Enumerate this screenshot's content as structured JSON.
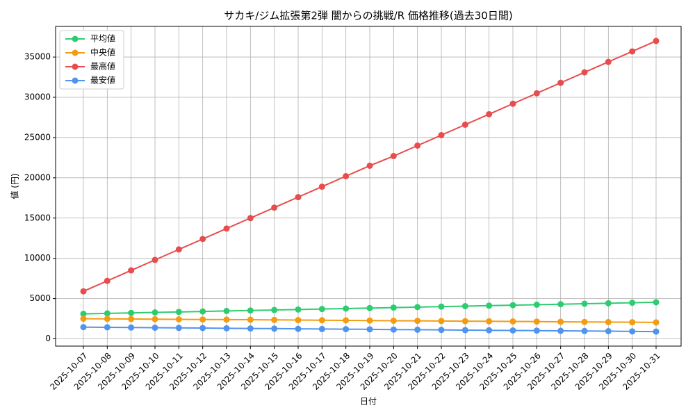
{
  "chart_data": {
    "type": "line",
    "title": "サカキ/ジム拡張第2弾 闇からの挑戦/R 価格推移(過去30日間)",
    "x_label": "日付",
    "y_label": "値 (円)",
    "categories": [
      "2025-10-07",
      "2025-10-08",
      "2025-10-09",
      "2025-10-10",
      "2025-10-11",
      "2025-10-12",
      "2025-10-13",
      "2025-10-14",
      "2025-10-15",
      "2025-10-16",
      "2025-10-17",
      "2025-10-18",
      "2025-10-19",
      "2025-10-20",
      "2025-10-21",
      "2025-10-22",
      "2025-10-23",
      "2025-10-24",
      "2025-10-25",
      "2025-10-26",
      "2025-10-27",
      "2025-10-28",
      "2025-10-29",
      "2025-10-30",
      "2025-10-31"
    ],
    "series": [
      {
        "name": "平均値",
        "color": "#2ecc71",
        "values": [
          3100,
          3160,
          3220,
          3280,
          3340,
          3400,
          3460,
          3520,
          3580,
          3640,
          3700,
          3760,
          3820,
          3880,
          3940,
          4000,
          4060,
          4120,
          4180,
          4240,
          4300,
          4360,
          4420,
          4480,
          4540
        ]
      },
      {
        "name": "中央値",
        "color": "#f39c12",
        "values": [
          2500,
          2480,
          2460,
          2440,
          2420,
          2400,
          2390,
          2370,
          2350,
          2330,
          2310,
          2290,
          2270,
          2250,
          2230,
          2210,
          2190,
          2180,
          2160,
          2140,
          2120,
          2100,
          2080,
          2060,
          2040
        ]
      },
      {
        "name": "最高値",
        "color": "#e84c4c",
        "values": [
          5900,
          7200,
          8500,
          9800,
          11100,
          12400,
          13700,
          15000,
          16300,
          17600,
          18900,
          20200,
          21500,
          22700,
          24000,
          25300,
          26600,
          27900,
          29200,
          30500,
          31800,
          33100,
          34400,
          35700,
          37000
        ]
      },
      {
        "name": "最安値",
        "color": "#4f94ef",
        "values": [
          1450,
          1430,
          1400,
          1380,
          1360,
          1340,
          1310,
          1290,
          1270,
          1240,
          1220,
          1200,
          1180,
          1150,
          1130,
          1110,
          1080,
          1060,
          1040,
          1020,
          990,
          970,
          950,
          920,
          900
        ]
      }
    ],
    "ylim": [
      -905,
      38805
    ],
    "yticks": [
      0,
      5000,
      10000,
      15000,
      20000,
      25000,
      30000,
      35000
    ],
    "grid": true,
    "legend": "upper-left"
  }
}
